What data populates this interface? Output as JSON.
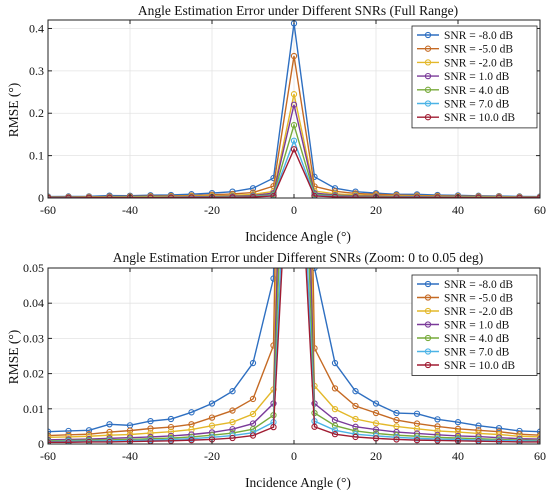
{
  "chart_data": [
    {
      "type": "line",
      "title": "Angle Estimation Error under Different SNRs (Full Range)",
      "xlabel": "Incidence Angle (°)",
      "ylabel": "RMSE (°)",
      "xlim": [
        -60,
        60
      ],
      "ylim": [
        0,
        0.42
      ],
      "xticks": [
        -60,
        -40,
        -20,
        0,
        20,
        40,
        60
      ],
      "yticks": [
        0,
        0.1,
        0.2,
        0.3,
        0.4
      ],
      "ytick_labels": [
        "0",
        "0.1",
        "0.2",
        "0.3",
        "0.4"
      ],
      "grid": true,
      "legend_position": "top-right"
    },
    {
      "type": "line",
      "title": "Angle Estimation Error under Different SNRs (Zoom: 0 to 0.05 deg)",
      "xlabel": "Incidence Angle (°)",
      "ylabel": "RMSE (°)",
      "xlim": [
        -60,
        60
      ],
      "ylim": [
        0,
        0.05
      ],
      "xticks": [
        -60,
        -40,
        -20,
        0,
        20,
        40,
        60
      ],
      "yticks": [
        0,
        0.01,
        0.02,
        0.03,
        0.04,
        0.05
      ],
      "ytick_labels": [
        "0",
        "0.01",
        "0.02",
        "0.03",
        "0.04",
        "0.05"
      ],
      "grid": true,
      "legend_position": "top-right"
    }
  ],
  "x": [
    -60,
    -55,
    -50,
    -45,
    -40,
    -35,
    -30,
    -25,
    -20,
    -15,
    -10,
    -5,
    0,
    5,
    10,
    15,
    20,
    25,
    30,
    35,
    40,
    45,
    50,
    55,
    60
  ],
  "series": [
    {
      "name": "SNR = -8.0 dB",
      "color": "#2e6fc1",
      "values": [
        0.0035,
        0.0037,
        0.0039,
        0.0056,
        0.0053,
        0.0065,
        0.0071,
        0.009,
        0.0115,
        0.015,
        0.023,
        0.047,
        0.412,
        0.05,
        0.023,
        0.015,
        0.0115,
        0.0088,
        0.0086,
        0.007,
        0.0062,
        0.0052,
        0.0045,
        0.0037,
        0.0035
      ]
    },
    {
      "name": "SNR = -5.0 dB",
      "color": "#c56a24",
      "values": [
        0.0024,
        0.0026,
        0.0028,
        0.0034,
        0.0038,
        0.0044,
        0.0048,
        0.0056,
        0.0075,
        0.0095,
        0.0128,
        0.028,
        0.335,
        0.0272,
        0.0158,
        0.0108,
        0.0088,
        0.0068,
        0.0058,
        0.005,
        0.0043,
        0.0039,
        0.0035,
        0.0028,
        0.0025
      ]
    },
    {
      "name": "SNR = -2.0 dB",
      "color": "#e3b82a",
      "values": [
        0.0019,
        0.002,
        0.0022,
        0.0025,
        0.0027,
        0.0031,
        0.0035,
        0.0041,
        0.0052,
        0.0062,
        0.0085,
        0.0155,
        0.245,
        0.0165,
        0.0099,
        0.0071,
        0.0059,
        0.005,
        0.0043,
        0.0037,
        0.0034,
        0.003,
        0.0027,
        0.0022,
        0.002
      ]
    },
    {
      "name": "SNR = 1.0 dB",
      "color": "#7a3a99",
      "values": [
        0.0012,
        0.0013,
        0.0014,
        0.0016,
        0.0018,
        0.002,
        0.0023,
        0.0027,
        0.0033,
        0.0042,
        0.0058,
        0.0115,
        0.22,
        0.0115,
        0.0068,
        0.0049,
        0.0041,
        0.0034,
        0.003,
        0.0026,
        0.0023,
        0.0021,
        0.0018,
        0.0015,
        0.0014
      ]
    },
    {
      "name": "SNR = 4.0 dB",
      "color": "#77aa3a",
      "values": [
        0.0009,
        0.001,
        0.0011,
        0.0012,
        0.0013,
        0.0015,
        0.0017,
        0.002,
        0.0025,
        0.0031,
        0.0042,
        0.0082,
        0.172,
        0.0088,
        0.0052,
        0.0037,
        0.003,
        0.0025,
        0.0022,
        0.0019,
        0.0017,
        0.0015,
        0.0013,
        0.0011,
        0.001
      ]
    },
    {
      "name": "SNR = 7.0 dB",
      "color": "#4bb3e6",
      "values": [
        0.0007,
        0.0008,
        0.0008,
        0.0009,
        0.001,
        0.0011,
        0.0013,
        0.0015,
        0.0019,
        0.0024,
        0.0032,
        0.0062,
        0.135,
        0.0065,
        0.0039,
        0.0028,
        0.0023,
        0.0019,
        0.0016,
        0.0014,
        0.0013,
        0.0011,
        0.001,
        0.0009,
        0.0008
      ]
    },
    {
      "name": "SNR = 10.0 dB",
      "color": "#a01c32",
      "values": [
        0.0005,
        0.0005,
        0.0006,
        0.0006,
        0.0007,
        0.0008,
        0.0009,
        0.0011,
        0.0013,
        0.0017,
        0.0024,
        0.0048,
        0.115,
        0.0049,
        0.0028,
        0.002,
        0.0016,
        0.0013,
        0.0011,
        0.001,
        0.0009,
        0.0008,
        0.0007,
        0.0006,
        0.0006
      ]
    }
  ]
}
